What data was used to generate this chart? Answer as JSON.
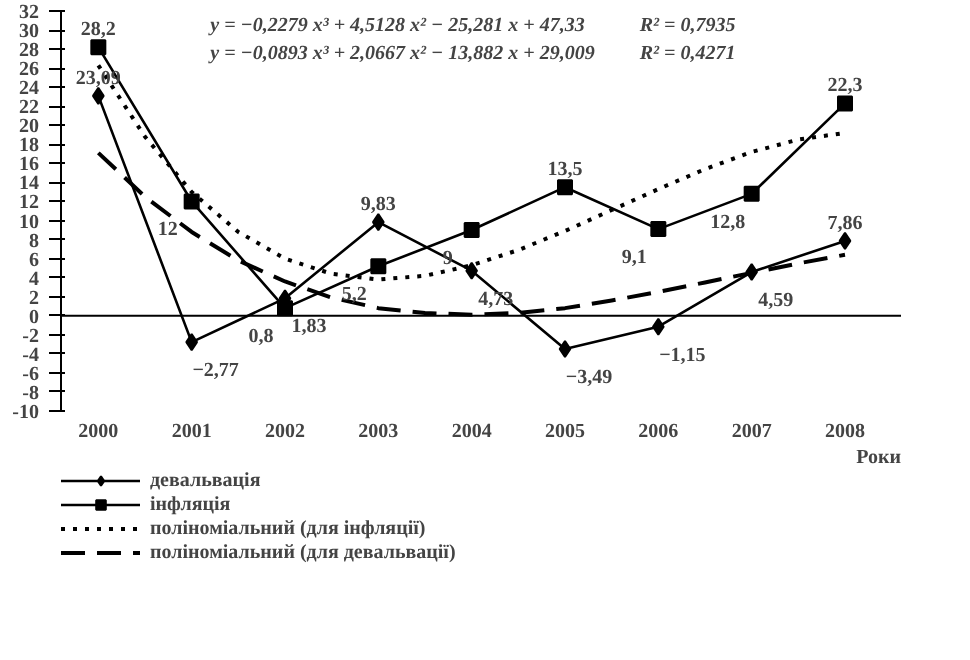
{
  "chart_data": {
    "type": "line",
    "xlabel": "Роки",
    "x": [
      2000,
      2001,
      2002,
      2003,
      2004,
      2005,
      2006,
      2007,
      2008
    ],
    "xlim": [
      1999.6,
      2008.6
    ],
    "xticks": [
      2000,
      2001,
      2002,
      2003,
      2004,
      2005,
      2006,
      2007,
      2008
    ],
    "ylim": [
      -10,
      32
    ],
    "yticks": [
      -10,
      -8,
      -6,
      -4,
      -2,
      0,
      2,
      4,
      6,
      8,
      10,
      12,
      14,
      16,
      18,
      20,
      22,
      24,
      26,
      28,
      30,
      32
    ],
    "legend": "bottom",
    "annotations": [
      "y = −0,2279 x³ + 4,5128 x² − 25,281 x + 47,33",
      "R² = 0,7935",
      "y = −0,0893 x³ + 2,0667 x² − 13,882 x + 29,009",
      "R² = 0,4271"
    ],
    "series": [
      {
        "name": "девальвація",
        "color": "#000000",
        "marker": "diamond",
        "line_style": "solid",
        "values": [
          23.09,
          -2.77,
          1.83,
          9.83,
          4.73,
          -3.49,
          -1.15,
          4.59,
          7.86
        ],
        "value_labels": [
          "23,09",
          "−2,77",
          "1,83",
          "9,83",
          "4,73",
          "−3,49",
          "−1,15",
          "4,59",
          "7,86"
        ]
      },
      {
        "name": "інфляція",
        "color": "#000000",
        "marker": "square",
        "line_style": "solid",
        "values": [
          28.2,
          12,
          0.8,
          5.2,
          9,
          13.5,
          9.1,
          12.8,
          22.3
        ],
        "value_labels": [
          "28,2",
          "12",
          "0,8",
          "5,2",
          "9",
          "13,5",
          "9,1",
          "12,8",
          "22,3"
        ]
      },
      {
        "name": "поліноміальний (для інфляції)",
        "color": "#000000",
        "marker": "none",
        "line_style": "dotted",
        "x": [
          2000,
          2000.5,
          2001,
          2001.5,
          2002,
          2002.5,
          2003,
          2003.5,
          2004,
          2004.5,
          2005,
          2005.5,
          2006,
          2006.5,
          2007,
          2007.5,
          2008
        ],
        "values": [
          26.3,
          18.8,
          13.0,
          8.8,
          6.0,
          4.4,
          3.8,
          4.2,
          5.3,
          6.9,
          8.9,
          11.1,
          13.3,
          15.4,
          17.2,
          18.5,
          19.2
        ]
      },
      {
        "name": "поліноміальний (для девальвації)",
        "color": "#000000",
        "marker": "none",
        "line_style": "dashed",
        "x": [
          2000,
          2000.5,
          2001,
          2001.5,
          2002,
          2002.5,
          2003,
          2003.5,
          2004,
          2004.5,
          2005,
          2005.5,
          2006,
          2006.5,
          2007,
          2007.5,
          2008
        ],
        "values": [
          17.1,
          12.5,
          8.8,
          5.8,
          3.6,
          1.9,
          0.8,
          0.3,
          0.1,
          0.3,
          0.8,
          1.6,
          2.5,
          3.5,
          4.5,
          5.5,
          6.4
        ]
      }
    ]
  }
}
